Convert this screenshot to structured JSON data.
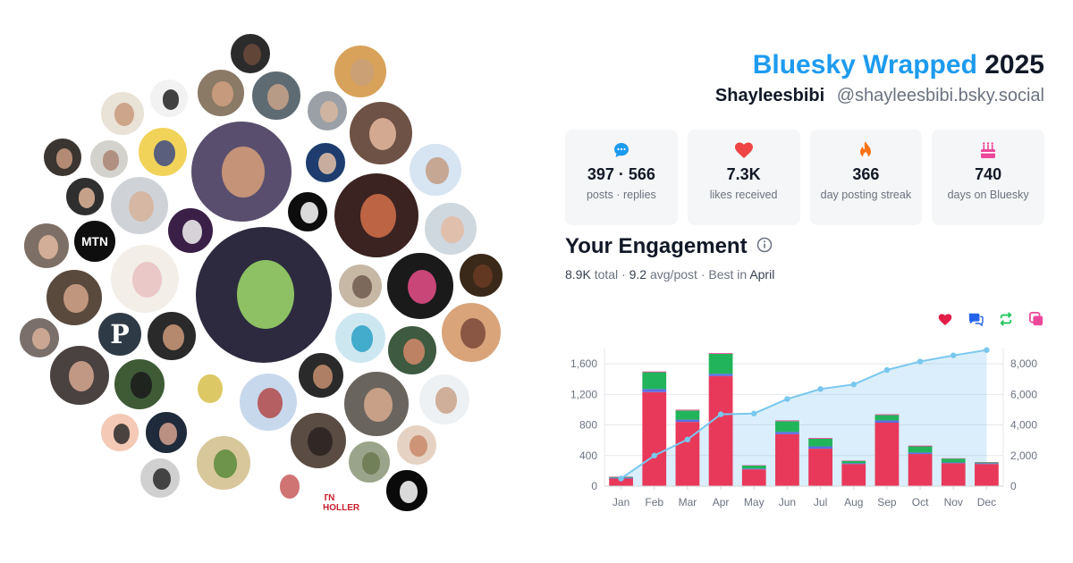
{
  "header": {
    "brand": "Bluesky Wrapped",
    "year": "2025",
    "display_name": "Shayleesbibi",
    "handle": "@shayleesbibi.bsky.social"
  },
  "stats": [
    {
      "icon": "speech-bubble-icon",
      "value": "397 · 566",
      "label": "posts · replies",
      "color": "#1d9bf0"
    },
    {
      "icon": "heart-icon",
      "value": "7.3K",
      "label": "likes received",
      "color": "#ef4444"
    },
    {
      "icon": "flame-icon",
      "value": "366",
      "label": "day posting streak",
      "color": "#f97316"
    },
    {
      "icon": "cake-icon",
      "value": "740",
      "label": "days on Bluesky",
      "color": "#ec4899"
    }
  ],
  "engagement": {
    "title": "Your Engagement",
    "info_icon": "info-icon",
    "total": "8.9K",
    "total_label": "total",
    "avg": "9.2",
    "avg_label": "avg/post",
    "best_label": "Best in",
    "best_month": "April",
    "sep": "·"
  },
  "legend": [
    {
      "icon": "heart-icon",
      "color": "#e11d48"
    },
    {
      "icon": "reply-icon",
      "color": "#2563eb"
    },
    {
      "icon": "repost-icon",
      "color": "#22c55e"
    },
    {
      "icon": "quote-icon",
      "color": "#ec4899"
    }
  ],
  "chart_data": {
    "type": "bar",
    "categories": [
      "Jan",
      "Feb",
      "Mar",
      "Apr",
      "May",
      "Jun",
      "Jul",
      "Aug",
      "Sep",
      "Oct",
      "Nov",
      "Dec"
    ],
    "stacked": true,
    "series": [
      {
        "values": [
          100,
          1230,
          840,
          1440,
          220,
          680,
          490,
          290,
          830,
          420,
          300,
          290
        ],
        "color": "#e8395a"
      },
      {
        "values": [
          10,
          40,
          30,
          30,
          10,
          30,
          30,
          10,
          30,
          20,
          10,
          10
        ],
        "color": "#5b6ee1"
      },
      {
        "values": [
          10,
          220,
          120,
          260,
          40,
          140,
          100,
          30,
          70,
          80,
          50,
          10
        ],
        "color": "#22b45a"
      },
      {
        "values": [
          5,
          10,
          10,
          10,
          5,
          10,
          10,
          5,
          10,
          10,
          5,
          5
        ],
        "color": "#ec4899"
      }
    ],
    "cumulative": {
      "values": [
        500,
        2000,
        3050,
        4700,
        4750,
        5700,
        6350,
        6650,
        7600,
        8150,
        8550,
        8900
      ],
      "color": "#79c7ef"
    },
    "y_left": {
      "ticks": [
        0,
        400,
        800,
        1200,
        1600
      ],
      "tick_labels": [
        "0",
        "400",
        "800",
        "1,200",
        "1,600"
      ],
      "lim": [
        0,
        1800
      ]
    },
    "y_right": {
      "ticks": [
        0,
        2000,
        4000,
        6000,
        8000
      ],
      "tick_labels": [
        "0",
        "2,000",
        "4,000",
        "6,000",
        "8,000"
      ],
      "lim": [
        0,
        9000
      ]
    },
    "grid": true
  },
  "avatars": [
    {
      "label": ""
    },
    {
      "label": ""
    },
    {
      "label": ""
    },
    {
      "label": ""
    },
    {
      "label": ""
    },
    {
      "label": ""
    },
    {
      "label": ""
    },
    {
      "label": ""
    },
    {
      "label": ""
    },
    {
      "label": ""
    },
    {
      "label": "MTN"
    },
    {
      "label": "P"
    },
    {
      "label": "TN HOLLER"
    }
  ]
}
